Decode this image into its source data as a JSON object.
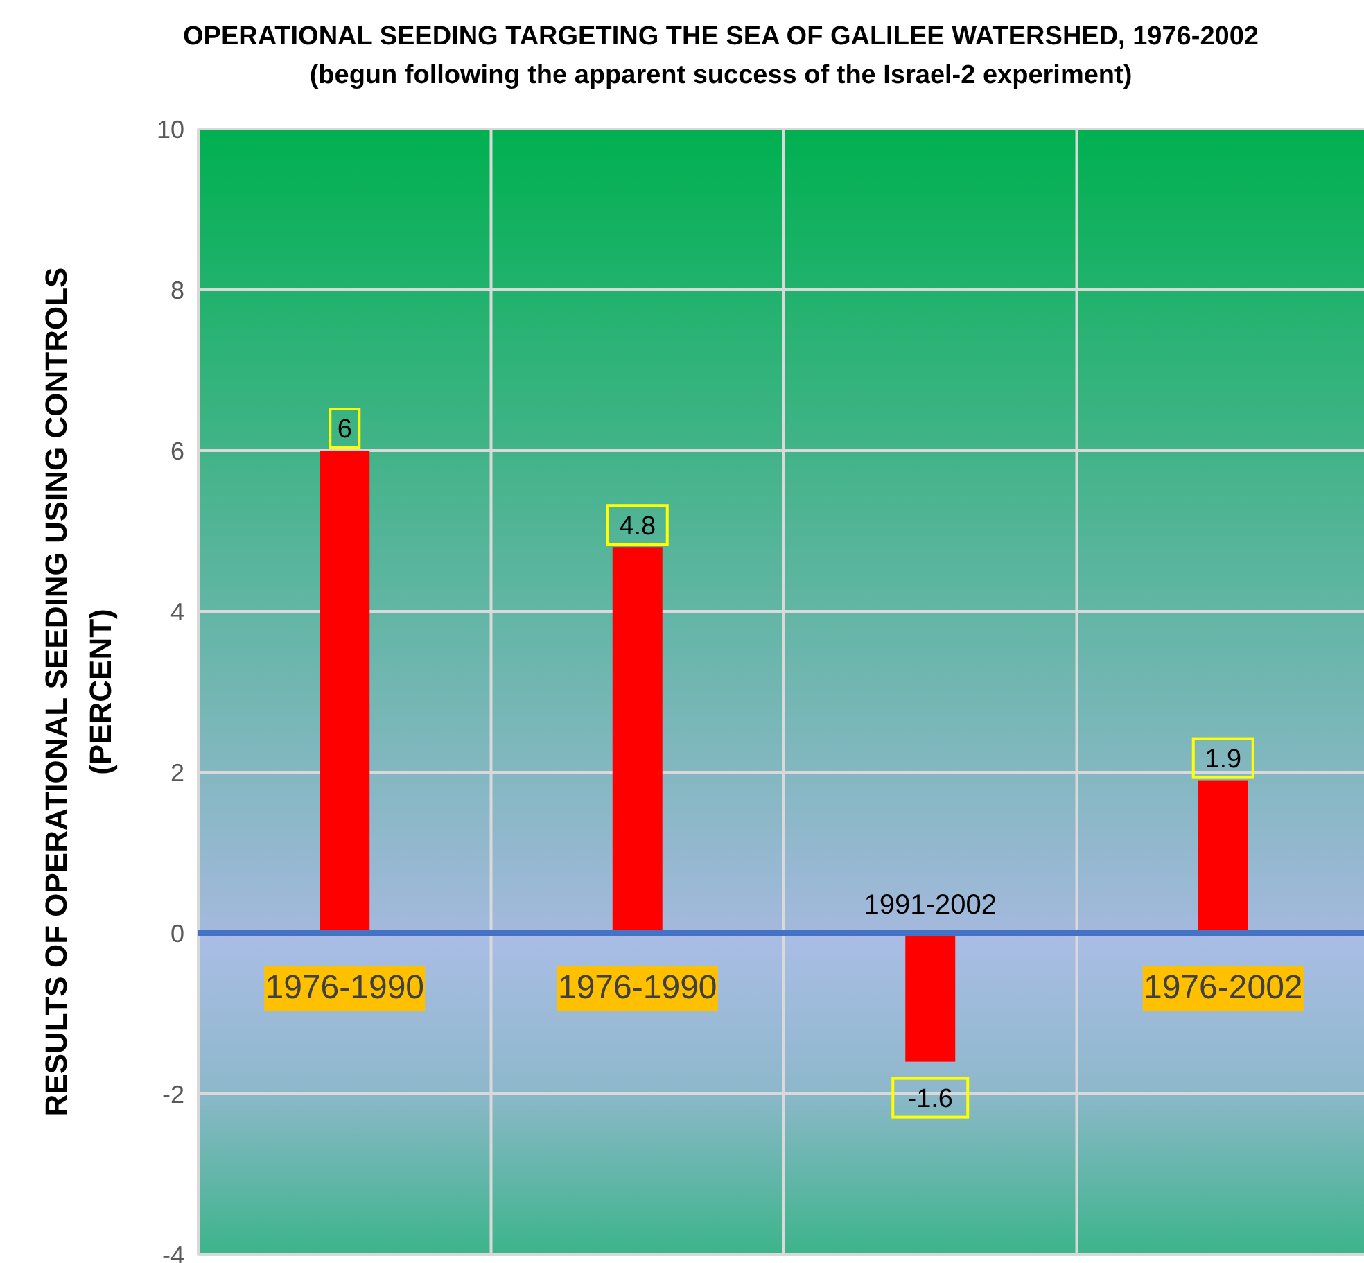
{
  "chart_data": {
    "type": "bar",
    "title": "OPERATIONAL  SEEDING TARGETING THE SEA OF GALILEE WATERSHED, 1976-2002",
    "subtitle": "(begun following the apparent success of the  Israel-2 experiment)",
    "ylabel": "RESULTS OF OPERATIONAL SEEDING USING CONTROLS\n(PERCENT)",
    "categories": [
      "1976-1990",
      "1976-1990",
      "1991-2002",
      "1976-2002"
    ],
    "values": [
      6,
      4.8,
      -1.6,
      1.9
    ],
    "color": "#ff0000",
    "ylim": [
      -4,
      10
    ],
    "yticks": [
      -4,
      -2,
      0,
      2,
      4,
      6,
      8,
      10
    ],
    "grid": true,
    "data_labels": true
  }
}
